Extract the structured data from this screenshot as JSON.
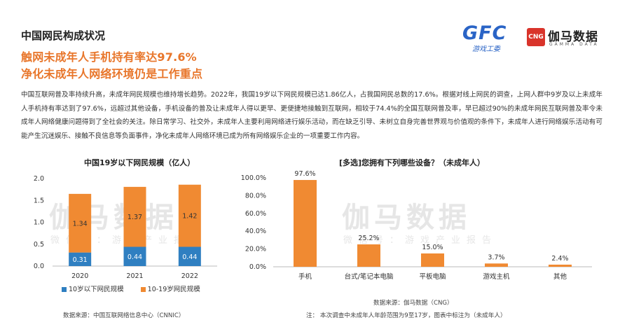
{
  "header": {
    "section_title": "中国网民构成状况",
    "headline_line1": "触网未成年人手机持有率达97.6%",
    "headline_line2": "净化未成年人网络环境仍是工作重点"
  },
  "logos": {
    "gfc_text": "GFC",
    "gfc_sub": "游戏工委",
    "cng_box": "CNG",
    "cng_name": "伽马数据",
    "cng_en": "GAMMA DATA"
  },
  "body_text": "中国互联网普及率持续升高，未成年网民规模也维持增长趋势。2022年，我国19岁以下网民规模已达1.86亿人，占我国网民总数的17.6%。根据对线上网民的调查，上网人群中9岁及以上未成年人手机持有率达到了97.6%，远超过其他设备，手机设备的普及让未成年人得以更早、更便捷地接触到互联网，相较于74.4%的全国互联网普及率，早已超过90%的未成年网民互联网普及率令未成年人网络健康问题得到了全社会的关注。除日常学习、社交外，未成年人主要利用网络进行娱乐活动，而在缺乏引导、未树立自身完善世界观与价值观的条件下，未成年人进行网络娱乐活动有可能产生沉迷娱乐、接触不良信息等负面事件，净化未成年人网络环境已成为所有网络娱乐企业的一项重要工作内容。",
  "watermark": {
    "main": "伽马数据",
    "sub": "微信号：游戏产业报告"
  },
  "colors": {
    "accent": "#e8762b",
    "blue": "#2f7fc1",
    "orange": "#f08a32"
  },
  "chart_data": [
    {
      "type": "bar",
      "stacked": true,
      "title": "中国19岁以下网民规模（亿人）",
      "categories": [
        "2020",
        "2021",
        "2022"
      ],
      "series": [
        {
          "name": "10岁以下网民规模",
          "values": [
            0.31,
            0.44,
            0.44
          ],
          "labels": [
            "0.31",
            "0.44",
            "0.44"
          ],
          "color": "#2f7fc1"
        },
        {
          "name": "10-19岁网民规模",
          "values": [
            1.34,
            1.37,
            1.42
          ],
          "labels": [
            "1.34",
            "1.37",
            "1.42"
          ],
          "color": "#f08a32"
        }
      ],
      "ylim": [
        0,
        2.0
      ],
      "yticks": [
        "0.0",
        "0.5",
        "1.0",
        "1.5",
        "2.0"
      ],
      "grid": false,
      "legend": "bottom",
      "source": "数据来源：中国互联网络信息中心（CNNIC）"
    },
    {
      "type": "bar",
      "title": "[多选]您拥有下列哪些设备？（未成年人）",
      "categories": [
        "手机",
        "台式/笔记本电脑",
        "平板电脑",
        "游戏主机",
        "其他"
      ],
      "values": [
        97.6,
        25.2,
        15.0,
        3.7,
        2.4
      ],
      "labels": [
        "97.6%",
        "25.2%",
        "15.0%",
        "3.7%",
        "2.4%"
      ],
      "color": "#f08a32",
      "ylim": [
        0,
        100
      ],
      "yticks": [
        "0.0%",
        "20.0%",
        "40.0%",
        "60.0%",
        "80.0%",
        "100.0%"
      ],
      "grid": false,
      "source": "数据来源：伽马数据（CNG）",
      "note": "注：  本次调查中未成年人年龄范围为9至17岁，图表中标注为（未成年人）"
    }
  ]
}
